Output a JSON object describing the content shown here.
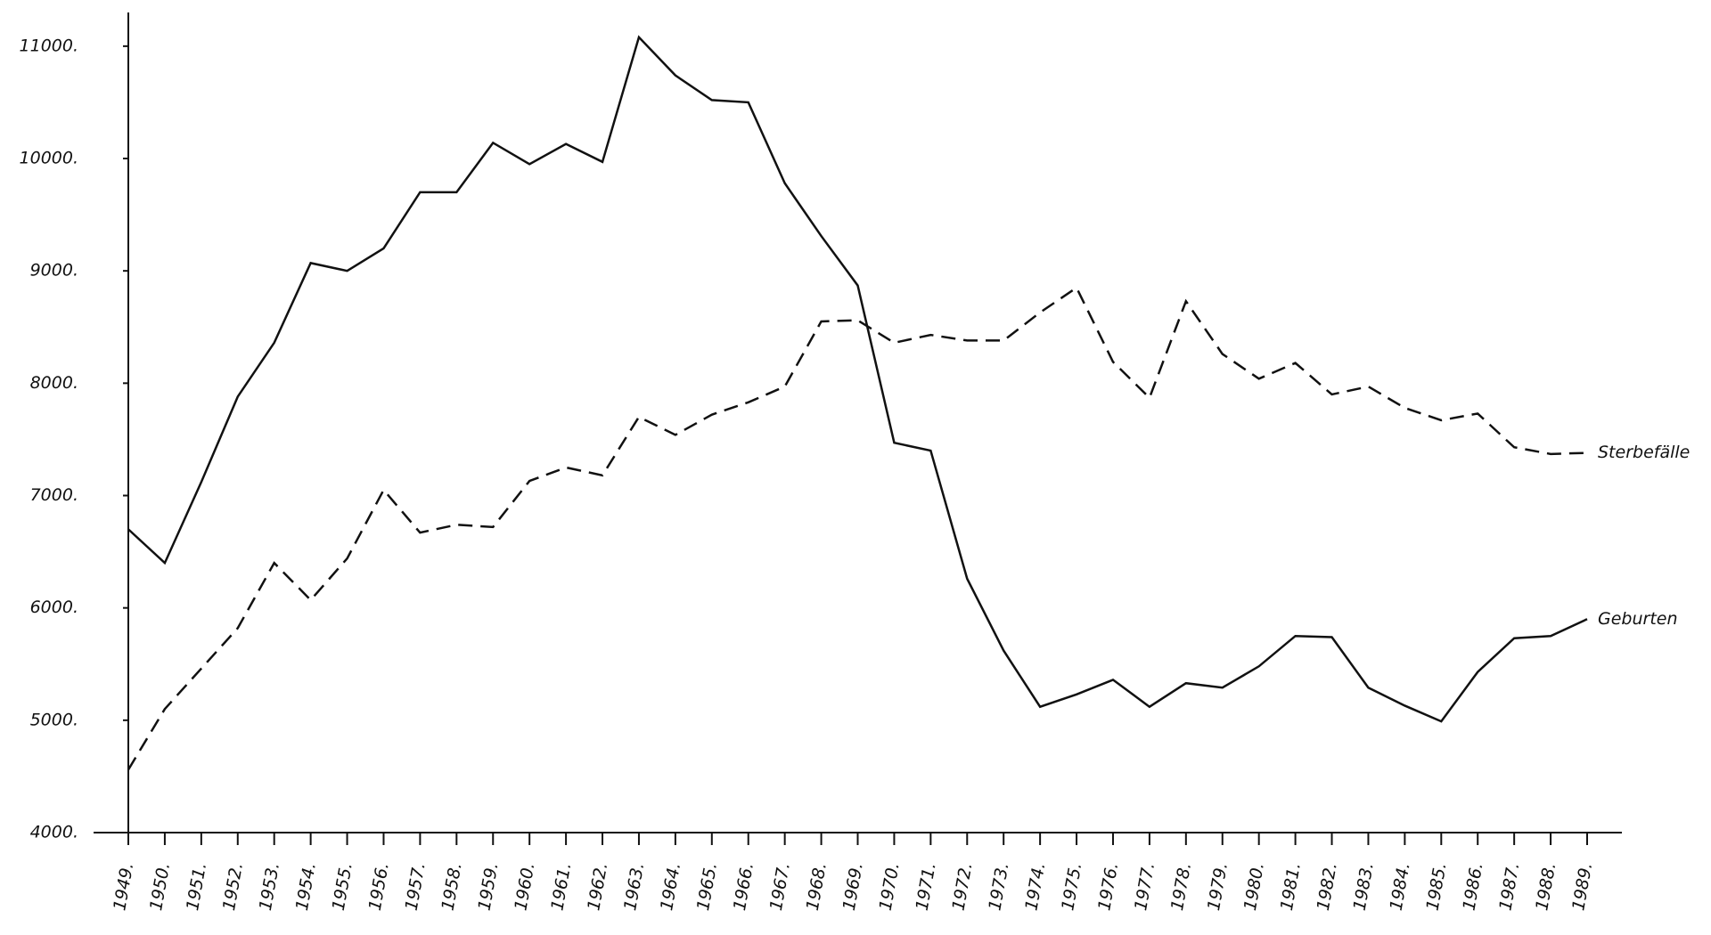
{
  "chart_data": {
    "type": "line",
    "categories": [
      "1949.",
      "1950.",
      "1951.",
      "1952.",
      "1953.",
      "1954.",
      "1955.",
      "1956.",
      "1957.",
      "1958.",
      "1959.",
      "1960.",
      "1961.",
      "1962.",
      "1963.",
      "1964.",
      "1965.",
      "1966.",
      "1967.",
      "1968.",
      "1969.",
      "1970.",
      "1971.",
      "1972.",
      "1973.",
      "1974.",
      "1975.",
      "1976.",
      "1977.",
      "1978.",
      "1979.",
      "1980.",
      "1981.",
      "1982.",
      "1983.",
      "1984.",
      "1985.",
      "1986.",
      "1987.",
      "1988.",
      "1989."
    ],
    "series": [
      {
        "name": "Geburten",
        "color": "#111111",
        "dashed": false,
        "values": [
          6700,
          6400,
          7120,
          7880,
          8360,
          9070,
          9000,
          9200,
          9700,
          9700,
          10140,
          9950,
          10130,
          9970,
          11080,
          10740,
          10520,
          10500,
          9780,
          9310,
          8870,
          7470,
          7400,
          6260,
          5620,
          5120,
          5230,
          5360,
          5120,
          5330,
          5290,
          5480,
          5750,
          5740,
          5290,
          5130,
          4990,
          5430,
          5730,
          5750,
          5900
        ]
      },
      {
        "name": "Sterbefälle",
        "color": "#111111",
        "dashed": true,
        "values": [
          4560,
          5100,
          5460,
          5820,
          6400,
          6070,
          6440,
          7050,
          6670,
          6740,
          6720,
          7130,
          7250,
          7180,
          7700,
          7540,
          7720,
          7830,
          7970,
          8550,
          8560,
          8360,
          8430,
          8380,
          8380,
          8630,
          8850,
          8190,
          7870,
          8730,
          8260,
          8040,
          8180,
          7900,
          7970,
          7780,
          7670,
          7730,
          7430,
          7370,
          7380
        ]
      }
    ],
    "ylim": [
      4000,
      11300
    ],
    "yticks": [
      {
        "value": 4000,
        "label": "4000."
      },
      {
        "value": 5000,
        "label": "5000."
      },
      {
        "value": 6000,
        "label": "6000."
      },
      {
        "value": 7000,
        "label": "7000."
      },
      {
        "value": 8000,
        "label": "8000."
      },
      {
        "value": 9000,
        "label": "9000."
      },
      {
        "value": 10000,
        "label": "10000."
      },
      {
        "value": 11000,
        "label": "11000."
      }
    ],
    "grid": false
  }
}
